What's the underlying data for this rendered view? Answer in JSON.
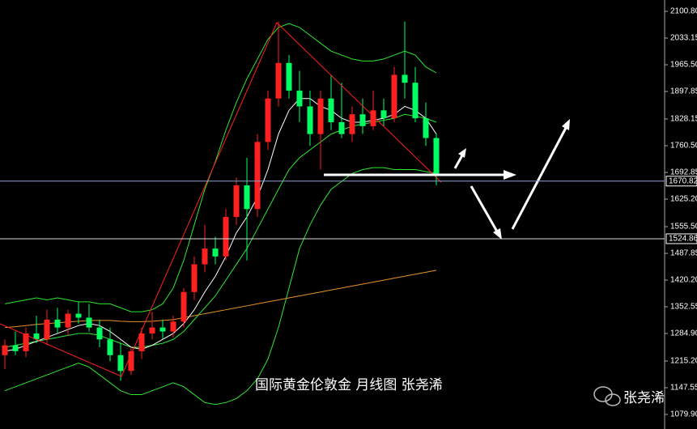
{
  "chart_data": {
    "type": "candlestick",
    "title": "国际黄金伦敦金 月线图 张尧浠",
    "watermark": "张尧浠",
    "ylim": [
      1043,
      2129.5
    ],
    "yticks": [
      {
        "value": 2100.8,
        "label": "2100.80"
      },
      {
        "value": 2033.15,
        "label": "2033.15"
      },
      {
        "value": 1965.5,
        "label": "1965.50"
      },
      {
        "value": 1897.85,
        "label": "1897.85"
      },
      {
        "value": 1828.15,
        "label": "1828.15"
      },
      {
        "value": 1760.5,
        "label": "1760.50"
      },
      {
        "value": 1692.85,
        "label": "1692.85"
      },
      {
        "value": 1625.2,
        "label": "1625.20"
      },
      {
        "value": 1555.5,
        "label": "1555.50"
      },
      {
        "value": 1487.85,
        "label": "1487.85"
      },
      {
        "value": 1420.2,
        "label": "1420.20"
      },
      {
        "value": 1352.55,
        "label": "1352.55"
      },
      {
        "value": 1284.9,
        "label": "1284.90"
      },
      {
        "value": 1215.2,
        "label": "1215.20"
      },
      {
        "value": 1147.55,
        "label": "1147.55"
      },
      {
        "value": 1079.9,
        "label": "1079.90"
      }
    ],
    "levels": [
      {
        "value": 1670.82,
        "label": "1670.82"
      },
      {
        "value": 1524.86,
        "label": "1524.86"
      }
    ],
    "up_color": "#ff2020",
    "down_color": "#00ff60",
    "open": [
      1230,
      1255,
      1240,
      1285,
      1270,
      1320,
      1300,
      1335,
      1325,
      1300,
      1270,
      1230,
      1190,
      1240,
      1285,
      1300,
      1290,
      1315,
      1390,
      1460,
      1500,
      1480,
      1580,
      1660,
      1600,
      1770,
      1880,
      1970,
      1900,
      1860,
      1790,
      1880,
      1820,
      1790,
      1840,
      1810,
      1850,
      1830,
      1940,
      1920,
      1830,
      1780
    ],
    "high": [
      1270,
      1290,
      1300,
      1330,
      1345,
      1350,
      1345,
      1365,
      1360,
      1320,
      1300,
      1260,
      1250,
      1300,
      1340,
      1320,
      1330,
      1400,
      1480,
      1560,
      1530,
      1600,
      1680,
      1730,
      1790,
      1900,
      2075,
      1990,
      1950,
      1900,
      1900,
      1940,
      1920,
      1860,
      1880,
      1900,
      1880,
      1960,
      2075,
      1960,
      1870,
      1790
    ],
    "low": [
      1195,
      1230,
      1225,
      1260,
      1255,
      1285,
      1280,
      1310,
      1290,
      1250,
      1215,
      1165,
      1180,
      1220,
      1270,
      1270,
      1275,
      1300,
      1370,
      1440,
      1460,
      1470,
      1560,
      1470,
      1580,
      1750,
      1860,
      1880,
      1820,
      1760,
      1700,
      1800,
      1780,
      1770,
      1790,
      1800,
      1810,
      1820,
      1880,
      1820,
      1760,
      1660
    ],
    "close": [
      1255,
      1240,
      1285,
      1270,
      1320,
      1300,
      1335,
      1325,
      1300,
      1270,
      1230,
      1190,
      1240,
      1285,
      1300,
      1290,
      1315,
      1390,
      1460,
      1500,
      1480,
      1580,
      1660,
      1600,
      1770,
      1880,
      1970,
      1900,
      1860,
      1790,
      1880,
      1820,
      1790,
      1840,
      1810,
      1850,
      1830,
      1940,
      1920,
      1830,
      1780,
      1690
    ],
    "overlays": [
      {
        "color": "#2ee82e",
        "values": [
          1360,
          1365,
          1370,
          1375,
          1370,
          1375,
          1370,
          1365,
          1365,
          1360,
          1360,
          1350,
          1340,
          1340,
          1345,
          1360,
          1400,
          1470,
          1560,
          1650,
          1720,
          1800,
          1870,
          1930,
          1980,
          2030,
          2060,
          2070,
          2060,
          2040,
          2020,
          2000,
          1990,
          1980,
          1975,
          1975,
          1980,
          1990,
          2000,
          1990,
          1960,
          1945
        ]
      },
      {
        "color": "#2ee82e",
        "values": [
          1250,
          1255,
          1260,
          1265,
          1270,
          1275,
          1280,
          1285,
          1285,
          1280,
          1270,
          1260,
          1250,
          1250,
          1255,
          1260,
          1270,
          1290,
          1320,
          1350,
          1380,
          1420,
          1460,
          1500,
          1550,
          1600,
          1650,
          1700,
          1730,
          1750,
          1770,
          1790,
          1800,
          1810,
          1815,
          1820,
          1825,
          1830,
          1840,
          1835,
          1830,
          1820
        ]
      },
      {
        "color": "#2ee82e",
        "values": [
          1140,
          1150,
          1160,
          1170,
          1180,
          1190,
          1200,
          1210,
          1200,
          1180,
          1160,
          1140,
          1130,
          1130,
          1140,
          1150,
          1160,
          1150,
          1130,
          1110,
          1105,
          1110,
          1120,
          1140,
          1170,
          1220,
          1300,
          1400,
          1500,
          1560,
          1610,
          1650,
          1670,
          1690,
          1700,
          1705,
          1705,
          1700,
          1700,
          1700,
          1695,
          1690
        ]
      },
      {
        "color": "#e8902a",
        "values": [
          1300,
          1302,
          1305,
          1308,
          1310,
          1312,
          1314,
          1316,
          1318,
          1318,
          1318,
          1316,
          1315,
          1315,
          1316,
          1318,
          1320,
          1325,
          1330,
          1335,
          1340,
          1345,
          1350,
          1355,
          1360,
          1365,
          1370,
          1375,
          1380,
          1385,
          1390,
          1395,
          1400,
          1405,
          1410,
          1415,
          1420,
          1425,
          1430,
          1435,
          1440,
          1445
        ]
      },
      {
        "color": "#ffffff",
        "values": [
          1240,
          1245,
          1255,
          1265,
          1275,
          1285,
          1295,
          1305,
          1310,
          1305,
          1290,
          1270,
          1250,
          1245,
          1255,
          1270,
          1285,
          1310,
          1345,
          1390,
          1430,
          1480,
          1540,
          1580,
          1630,
          1700,
          1790,
          1850,
          1880,
          1880,
          1860,
          1850,
          1830,
          1820,
          1820,
          1825,
          1830,
          1840,
          1860,
          1850,
          1830,
          1790
        ]
      }
    ]
  }
}
